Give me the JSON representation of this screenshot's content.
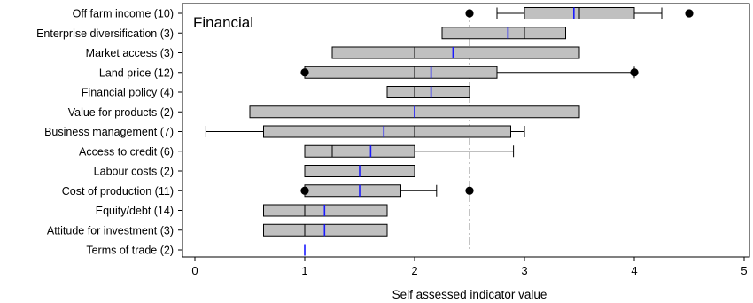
{
  "chart_data": {
    "type": "box",
    "title": "Financial",
    "xlabel": "Self assessed indicator value",
    "xlim": [
      0,
      5
    ],
    "xticks": [
      "0",
      "1",
      "2",
      "3",
      "4",
      "5"
    ],
    "reference_line": 2.5,
    "grid": false,
    "colors": {
      "box": "#c0c0c0",
      "mean": "#1a1aff",
      "reference": "#888888",
      "outline": "#000000"
    },
    "series": [
      {
        "label": "Off farm income (10)",
        "whisker_low": 2.75,
        "q1": 3.0,
        "median": 3.5,
        "q3": 4.0,
        "whisker_high": 4.25,
        "mean": 3.45,
        "outliers": [
          2.5,
          4.5
        ]
      },
      {
        "label": "Enterprise diversification (3)",
        "whisker_low": 2.25,
        "q1": 2.25,
        "median": 3.0,
        "q3": 3.375,
        "whisker_high": 3.375,
        "mean": 2.85,
        "outliers": []
      },
      {
        "label": "Market access (3)",
        "whisker_low": 1.25,
        "q1": 1.25,
        "median": 2.0,
        "q3": 3.5,
        "whisker_high": 3.5,
        "mean": 2.35,
        "outliers": []
      },
      {
        "label": "Land price (12)",
        "whisker_low": 1.0,
        "q1": 1.0,
        "median": 2.0,
        "q3": 2.75,
        "whisker_high": 4.0,
        "mean": 2.15,
        "outliers": [
          1.0,
          4.0
        ]
      },
      {
        "label": "Financial policy (4)",
        "whisker_low": 1.75,
        "q1": 1.75,
        "median": 2.0,
        "q3": 2.5,
        "whisker_high": 2.5,
        "mean": 2.15,
        "outliers": []
      },
      {
        "label": "Value for products (2)",
        "whisker_low": 0.5,
        "q1": 0.5,
        "median": 2.0,
        "q3": 3.5,
        "whisker_high": 3.5,
        "mean": 2.0,
        "outliers": []
      },
      {
        "label": "Business management (7)",
        "whisker_low": 0.1,
        "q1": 0.625,
        "median": 2.0,
        "q3": 2.875,
        "whisker_high": 3.0,
        "mean": 1.72,
        "outliers": []
      },
      {
        "label": "Access to credit (6)",
        "whisker_low": 1.0,
        "q1": 1.0,
        "median": 1.25,
        "q3": 2.0,
        "whisker_high": 2.9,
        "mean": 1.6,
        "outliers": []
      },
      {
        "label": "Labour costs (2)",
        "whisker_low": 1.0,
        "q1": 1.0,
        "median": 1.5,
        "q3": 2.0,
        "whisker_high": 2.0,
        "mean": 1.5,
        "outliers": []
      },
      {
        "label": "Cost of production (11)",
        "whisker_low": 1.0,
        "q1": 1.0,
        "median": 1.5,
        "q3": 1.875,
        "whisker_high": 2.2,
        "mean": 1.5,
        "outliers": [
          1.0,
          2.5
        ]
      },
      {
        "label": "Equity/debt (14)",
        "whisker_low": 0.625,
        "q1": 0.625,
        "median": 1.0,
        "q3": 1.75,
        "whisker_high": 1.75,
        "mean": 1.18,
        "outliers": []
      },
      {
        "label": "Attitude for investment (3)",
        "whisker_low": 0.625,
        "q1": 0.625,
        "median": 1.0,
        "q3": 1.75,
        "whisker_high": 1.75,
        "mean": 1.18,
        "outliers": []
      },
      {
        "label": "Terms of trade (2)",
        "whisker_low": 1.0,
        "q1": 1.0,
        "median": 1.0,
        "q3": 1.0,
        "whisker_high": 1.0,
        "mean": 1.0,
        "outliers": []
      }
    ]
  }
}
